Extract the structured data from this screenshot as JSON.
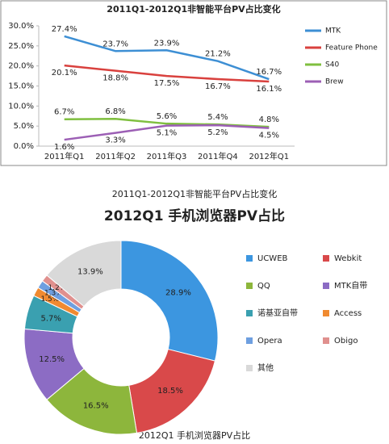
{
  "chart_data": [
    {
      "type": "line",
      "title": "2011Q1-2012Q1非智能平台PV占比变化",
      "categories": [
        "2011年Q1",
        "2011年Q2",
        "2011年Q3",
        "2011年Q4",
        "2012年Q1"
      ],
      "ylim": [
        0,
        30
      ],
      "yticks": [
        {
          "value": 0,
          "label": "0.0%"
        },
        {
          "value": 5,
          "label": "5.0%"
        },
        {
          "value": 10,
          "label": "10.0%"
        },
        {
          "value": 15,
          "label": "15.0%"
        },
        {
          "value": 20,
          "label": "20.0%"
        },
        {
          "value": 25,
          "label": "25.0%"
        },
        {
          "value": 30,
          "label": "30.0%"
        }
      ],
      "legend": "right",
      "series": [
        {
          "name": "MTK",
          "color": "#3d8fd4",
          "values": [
            27.4,
            23.7,
            23.9,
            21.2,
            16.7
          ],
          "value_labels": [
            "27.4%",
            "23.7%",
            "23.9%",
            "21.2%",
            "16.7%"
          ]
        },
        {
          "name": "Feature Phone",
          "color": "#d9413e",
          "values": [
            20.1,
            18.8,
            17.5,
            16.7,
            16.1
          ],
          "value_labels": [
            "20.1%",
            "18.8%",
            "17.5%",
            "16.7%",
            "16.1%"
          ]
        },
        {
          "name": "S40",
          "color": "#7fbf3f",
          "values": [
            6.7,
            6.8,
            5.6,
            5.4,
            4.8
          ],
          "value_labels": [
            "6.7%",
            "6.8%",
            "5.6%",
            "5.4%",
            "4.8%"
          ]
        },
        {
          "name": "Brew",
          "color": "#9c5fb5",
          "values": [
            1.6,
            3.3,
            5.1,
            5.2,
            4.5
          ],
          "value_labels": [
            "1.6%",
            "3.3%",
            "5.1%",
            "5.2%",
            "4.5%"
          ]
        }
      ]
    },
    {
      "type": "pie",
      "header": "2011Q1-2012Q1非智能平台PV占比变化",
      "title": "2012Q1 手机浏览器PV占比",
      "caption": "2012Q1 手机浏览器PV占比",
      "categories": [
        "UCWEB",
        "Webkit",
        "QQ",
        "MTK自带",
        "诺基亚自带",
        "Access",
        "Opera",
        "Obigo",
        "其他"
      ],
      "values": [
        28.9,
        18.5,
        16.5,
        12.5,
        5.7,
        1.5,
        1.3,
        1.2,
        13.9
      ],
      "value_labels": [
        "28.9%",
        "18.5%",
        "16.5%",
        "12.5%",
        "5.7%",
        "1.5%",
        "1.3%",
        "1.2%",
        "13.9%"
      ],
      "colors": [
        "#3c96e0",
        "#d9494a",
        "#8db63c",
        "#8c6cc4",
        "#3aa0b0",
        "#f08a30",
        "#6e9fe0",
        "#e0908e",
        "#d9d9d9"
      ],
      "legend": "right"
    }
  ]
}
